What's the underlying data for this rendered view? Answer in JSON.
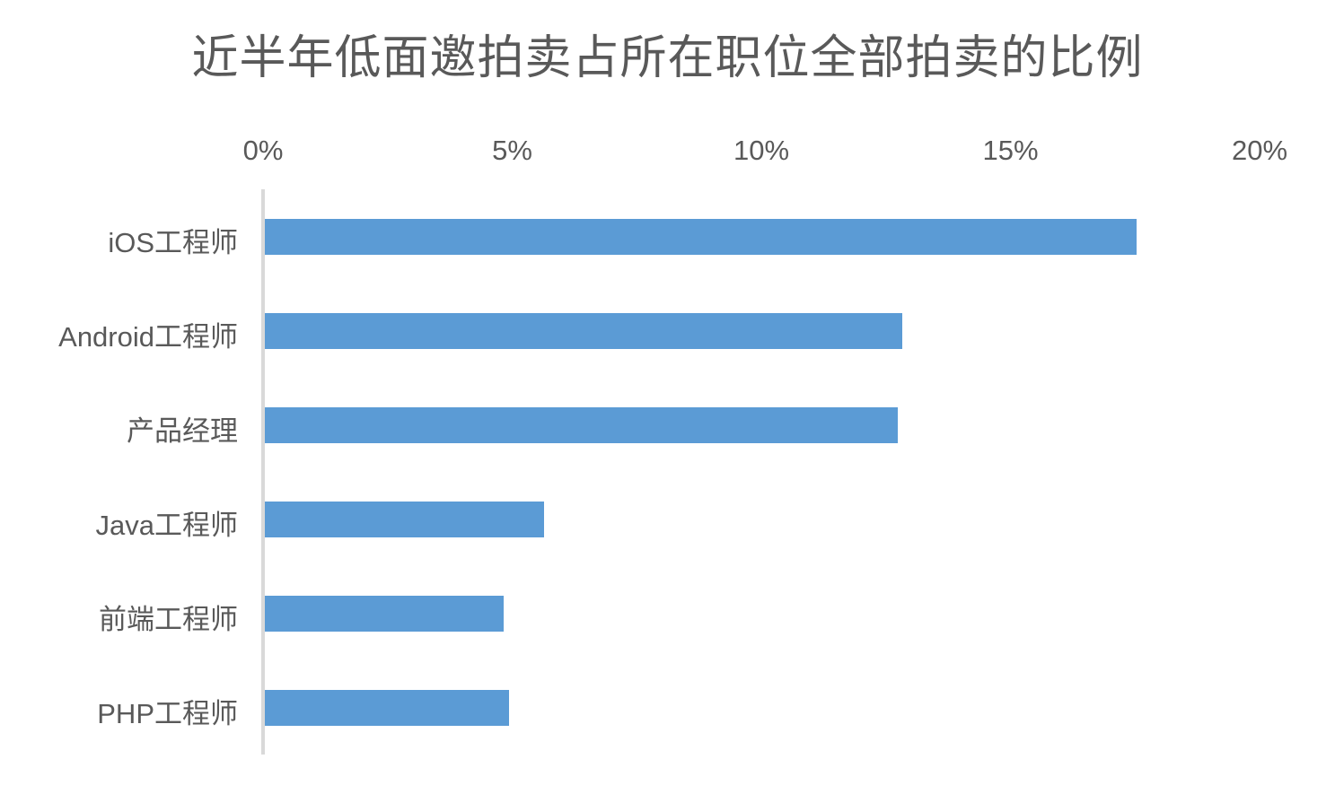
{
  "title": "近半年低面邀拍卖占所在职位全部拍卖的比例",
  "chart_data": {
    "type": "bar",
    "orientation": "horizontal",
    "title": "近半年低面邀拍卖占所在职位全部拍卖的比例",
    "categories": [
      "iOS工程师",
      "Android工程师",
      "产品经理",
      "Java工程师",
      "前端工程师",
      "PHP工程师"
    ],
    "values": [
      17.5,
      12.8,
      12.7,
      5.6,
      4.8,
      4.9
    ],
    "unit": "%",
    "xlabel": "",
    "ylabel": "",
    "x_ticks": [
      "0%",
      "5%",
      "10%",
      "15%",
      "20%"
    ],
    "x_tick_values": [
      0,
      5,
      10,
      15,
      20
    ],
    "xlim": [
      0,
      20
    ],
    "tick_position": "top",
    "grid": false,
    "legend": false,
    "colors": {
      "bar": "#5b9bd5",
      "text": "#595959",
      "axis_line": "#d9d9d9",
      "background": "#ffffff"
    }
  }
}
